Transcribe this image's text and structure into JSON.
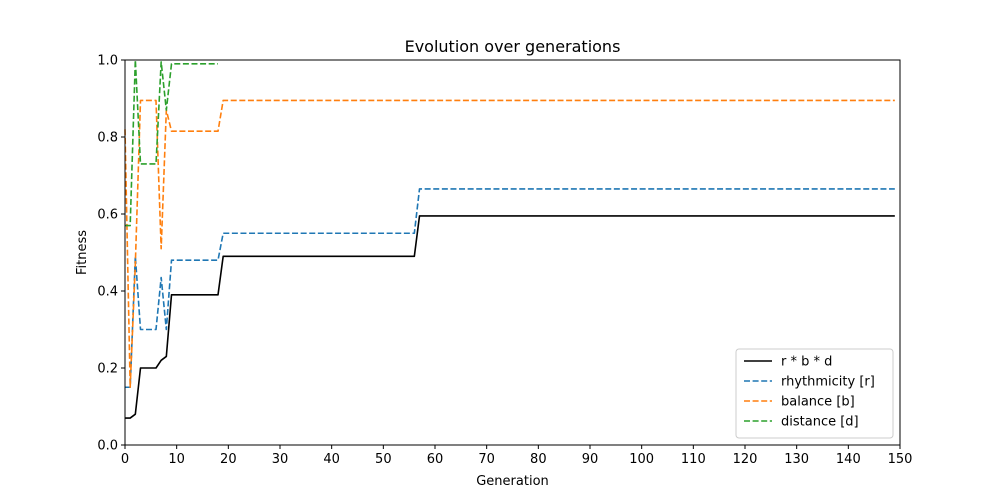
{
  "chart_data": {
    "type": "line",
    "title": "Evolution over generations",
    "xlabel": "Generation",
    "ylabel": "Fitness",
    "xlim": [
      0,
      150
    ],
    "ylim": [
      0,
      1.0
    ],
    "xticks": [
      0,
      10,
      20,
      30,
      40,
      50,
      60,
      70,
      80,
      90,
      100,
      110,
      120,
      130,
      140,
      150
    ],
    "yticks": [
      0.0,
      0.2,
      0.4,
      0.6,
      0.8,
      1.0
    ],
    "ytick_labels": [
      "0.0",
      "0.2",
      "0.4",
      "0.6",
      "0.8",
      "1.0"
    ],
    "grid": false,
    "legend_position": "lower-right",
    "series": [
      {
        "name": "r * b * d",
        "color": "#000000",
        "dashed": false,
        "points": [
          [
            0,
            0.07
          ],
          [
            1,
            0.07
          ],
          [
            2,
            0.08
          ],
          [
            3,
            0.2
          ],
          [
            4,
            0.2
          ],
          [
            5,
            0.2
          ],
          [
            6,
            0.2
          ],
          [
            7,
            0.22
          ],
          [
            8,
            0.23
          ],
          [
            9,
            0.39
          ],
          [
            10,
            0.39
          ],
          [
            18,
            0.39
          ],
          [
            19,
            0.49
          ],
          [
            56,
            0.49
          ],
          [
            57,
            0.595
          ],
          [
            149,
            0.595
          ]
        ]
      },
      {
        "name": "rhythmicity [r]",
        "color": "#1f77b4",
        "dashed": true,
        "points": [
          [
            0,
            0.15
          ],
          [
            1,
            0.15
          ],
          [
            2,
            0.49
          ],
          [
            3,
            0.3
          ],
          [
            4,
            0.3
          ],
          [
            5,
            0.3
          ],
          [
            6,
            0.3
          ],
          [
            7,
            0.435
          ],
          [
            8,
            0.3
          ],
          [
            9,
            0.48
          ],
          [
            10,
            0.48
          ],
          [
            18,
            0.48
          ],
          [
            19,
            0.55
          ],
          [
            56,
            0.55
          ],
          [
            57,
            0.665
          ],
          [
            149,
            0.665
          ]
        ]
      },
      {
        "name": "balance [b]",
        "color": "#ff7f0e",
        "dashed": true,
        "points": [
          [
            0,
            0.82
          ],
          [
            1,
            0.15
          ],
          [
            2,
            0.47
          ],
          [
            3,
            0.895
          ],
          [
            4,
            0.895
          ],
          [
            5,
            0.895
          ],
          [
            6,
            0.895
          ],
          [
            7,
            0.51
          ],
          [
            8,
            0.87
          ],
          [
            9,
            0.815
          ],
          [
            10,
            0.815
          ],
          [
            18,
            0.815
          ],
          [
            19,
            0.895
          ],
          [
            149,
            0.895
          ]
        ]
      },
      {
        "name": "distance [d]",
        "color": "#2ca02c",
        "dashed": true,
        "points": [
          [
            0,
            0.57
          ],
          [
            1,
            0.57
          ],
          [
            2,
            1.0
          ],
          [
            3,
            0.73
          ],
          [
            4,
            0.73
          ],
          [
            5,
            0.73
          ],
          [
            6,
            0.73
          ],
          [
            7,
            0.995
          ],
          [
            8,
            0.87
          ],
          [
            9,
            0.99
          ],
          [
            10,
            0.99
          ],
          [
            18,
            0.99
          ]
        ]
      }
    ]
  }
}
